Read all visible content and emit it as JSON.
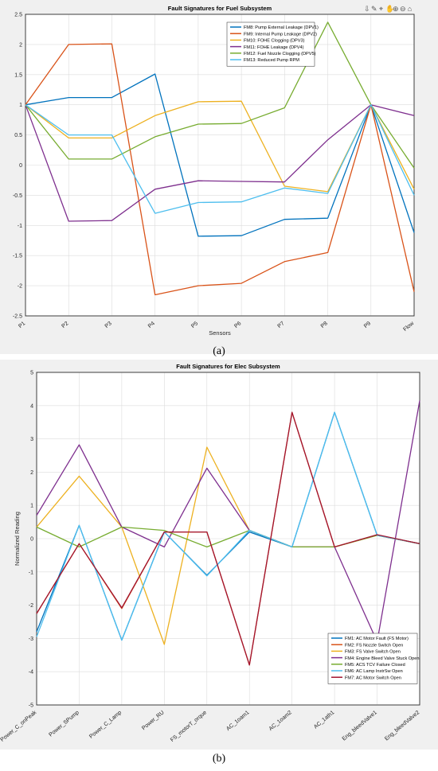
{
  "toolbar": {
    "icons": [
      "export-icon",
      "brush-icon",
      "datatip-icon",
      "pan-icon",
      "zoom-in-icon",
      "zoom-out-icon",
      "home-icon"
    ]
  },
  "captions": {
    "a": "(a)",
    "b": "(b)"
  },
  "chart_data": [
    {
      "type": "line",
      "title": "Fault Signatures for Fuel Subsystem",
      "xlabel": "Sensors",
      "ylabel": "",
      "categories": [
        "P1",
        "P2",
        "P3",
        "P4",
        "P5",
        "P6",
        "P7",
        "P8",
        "P9",
        "Flow"
      ],
      "ylim": [
        -2.5,
        2.5
      ],
      "yticks": [
        "2.5",
        "2",
        "1.5",
        "1",
        "0.5",
        "0",
        "-0.5",
        "-1",
        "-1.5",
        "-2",
        "-2.5"
      ],
      "grid": true,
      "legend_position": "top-right",
      "series": [
        {
          "name": "FM8: Pump External Leakage (DPV1)",
          "color": "#0072BD",
          "values": [
            1,
            1.12,
            1.12,
            1.51,
            -1.18,
            -1.17,
            -0.9,
            -0.88,
            1,
            -1.12
          ]
        },
        {
          "name": "FM9: Internal Pump Leakage (DPV2)",
          "color": "#D95319",
          "values": [
            1,
            2.0,
            2.01,
            -2.15,
            -2.0,
            -1.96,
            -1.6,
            -1.45,
            1,
            -2.1
          ]
        },
        {
          "name": "FM10: FOHE Clogging (DPV3)",
          "color": "#EDB120",
          "values": [
            1,
            0.45,
            0.45,
            0.82,
            1.05,
            1.06,
            -0.35,
            -0.44,
            1,
            -0.4
          ]
        },
        {
          "name": "FM11: FOHE Leakage (DPV4)",
          "color": "#7E2F8E",
          "values": [
            1,
            -0.93,
            -0.92,
            -0.4,
            -0.26,
            -0.27,
            -0.28,
            0.42,
            1,
            0.82
          ]
        },
        {
          "name": "FM12: Fuel Nozzle Clogging (DPV5)",
          "color": "#77AC30",
          "values": [
            1,
            0.1,
            0.1,
            0.47,
            0.68,
            0.69,
            0.95,
            2.37,
            1,
            -0.05
          ]
        },
        {
          "name": "FM13: Reduced Pump RPM",
          "color": "#4DBEEE",
          "values": [
            1,
            0.5,
            0.5,
            -0.8,
            -0.62,
            -0.61,
            -0.38,
            -0.47,
            1,
            -0.5
          ]
        }
      ]
    },
    {
      "type": "line",
      "title": "Fault Signatures for Elec Subsystem",
      "xlabel": "",
      "ylabel": "Normalized Reading",
      "categories": [
        "Power_C_onPeak",
        "Power_SPump",
        "Power_C_Lamp",
        "Power_RU",
        "FS_motorT_orque",
        "AC_1oam1",
        "AC_1oam2",
        "AC_1ath1",
        "Eng_bleedValve1",
        "Eng_bleedValve2"
      ],
      "ylim": [
        -5,
        5
      ],
      "yticks": [
        "5",
        "4",
        "3",
        "2",
        "1",
        "0",
        "-1",
        "-2",
        "-3",
        "-4",
        "-5"
      ],
      "grid": true,
      "legend_position": "bottom-right",
      "series": [
        {
          "name": "FM1: AC Motor Fault (FS Motor)",
          "color": "#0072BD",
          "values": [
            -2.8,
            0.4,
            -3.05,
            0.2,
            -1.1,
            0.2,
            -0.25,
            3.8,
            0.1,
            -0.15
          ]
        },
        {
          "name": "FM2: FS Nozzle Switch Open",
          "color": "#D95319",
          "values": [
            -2.25,
            -0.15,
            -2.1,
            0.2,
            0.2,
            -3.8,
            3.8,
            -0.25,
            0.1,
            -0.15
          ]
        },
        {
          "name": "FM3: FS Valve Switch Open",
          "color": "#EDB120",
          "values": [
            0.35,
            1.88,
            0.35,
            -3.18,
            2.75,
            0.25,
            -0.25,
            -0.25,
            0.1,
            -0.15
          ]
        },
        {
          "name": "FM4: Engine Bleed Valve Stuck Open",
          "color": "#7E2F8E",
          "values": [
            0.7,
            2.82,
            0.35,
            -0.25,
            2.12,
            0.25,
            -0.25,
            -0.25,
            -3.1,
            4.15
          ]
        },
        {
          "name": "FM5: ACS TCV Failure Closed",
          "color": "#77AC30",
          "values": [
            0.35,
            -0.25,
            0.35,
            0.25,
            -0.25,
            0.25,
            -0.25,
            -0.25,
            0.1,
            -0.15
          ]
        },
        {
          "name": "FM6: AC Lamp InstrSw Open",
          "color": "#4DBEEE",
          "values": [
            -2.95,
            0.4,
            -3.05,
            0.2,
            -1.12,
            0.25,
            -0.25,
            3.8,
            0.1,
            -0.15
          ]
        },
        {
          "name": "FM7: AC Motor Switch Open",
          "color": "#A2142F",
          "values": [
            -2.25,
            -0.15,
            -2.08,
            0.2,
            0.2,
            -3.8,
            3.8,
            -0.25,
            0.12,
            -0.15
          ]
        }
      ]
    }
  ]
}
